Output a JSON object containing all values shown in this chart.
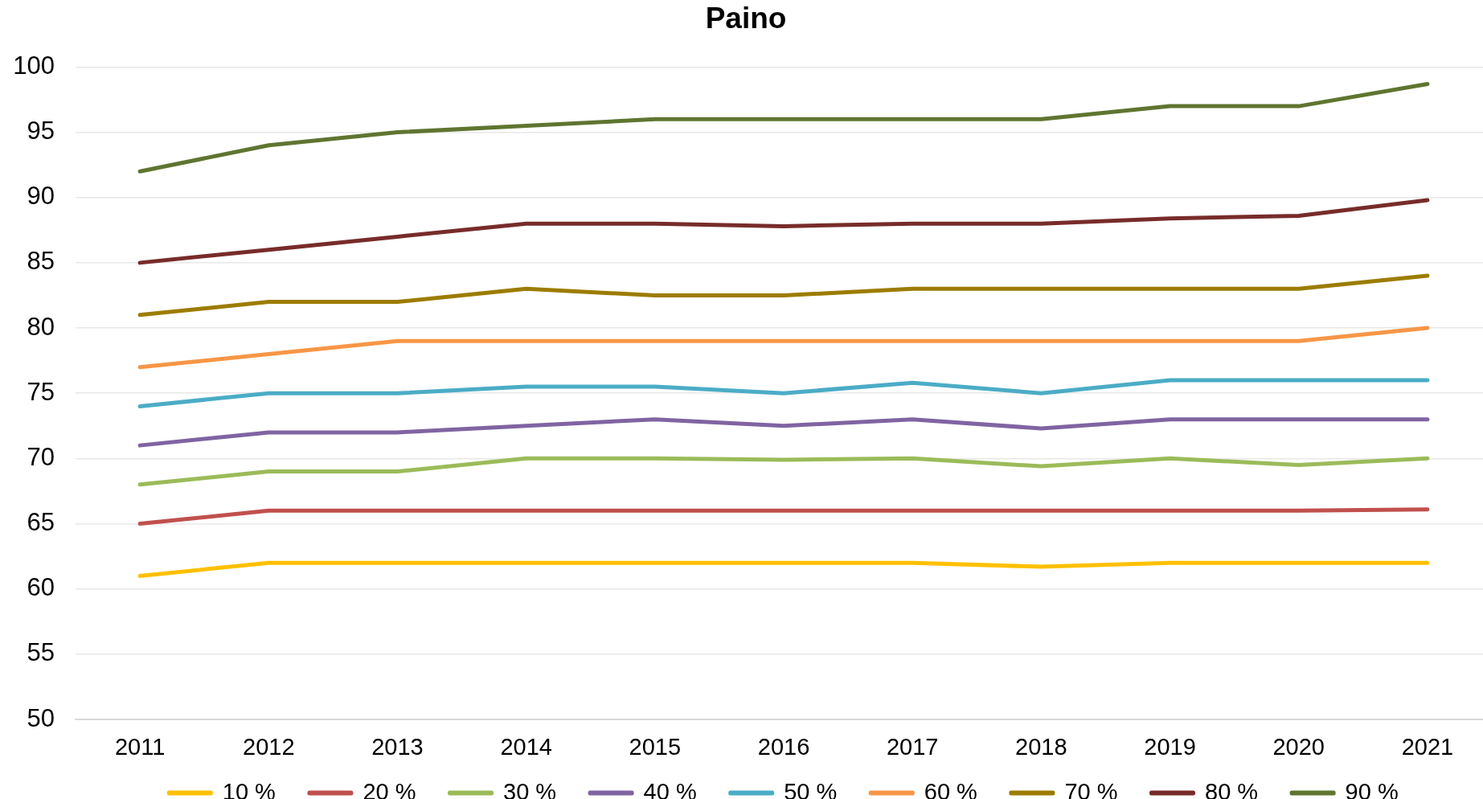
{
  "chart_data": {
    "type": "line",
    "title": "Paino",
    "categories": [
      "2011",
      "2012",
      "2013",
      "2014",
      "2015",
      "2016",
      "2017",
      "2018",
      "2019",
      "2020",
      "2021"
    ],
    "series": [
      {
        "name": "10 %",
        "color": "#ffc000",
        "values": [
          61,
          62,
          62,
          62,
          62,
          62,
          62,
          61.7,
          62,
          62,
          62
        ]
      },
      {
        "name": "20 %",
        "color": "#c0504d",
        "values": [
          65,
          66,
          66,
          66,
          66,
          66,
          66,
          66,
          66,
          66,
          66.1
        ]
      },
      {
        "name": "30 %",
        "color": "#9bbb59",
        "values": [
          68,
          69,
          69,
          70,
          70,
          69.9,
          70,
          69.4,
          70,
          69.5,
          70
        ]
      },
      {
        "name": "40 %",
        "color": "#8064a2",
        "values": [
          71,
          72,
          72,
          72.5,
          73,
          72.5,
          73,
          72.3,
          73,
          73,
          73
        ]
      },
      {
        "name": "50 %",
        "color": "#4bacc6",
        "values": [
          74,
          75,
          75,
          75.5,
          75.5,
          75,
          75.8,
          75,
          76,
          76,
          76
        ]
      },
      {
        "name": "60 %",
        "color": "#f79646",
        "values": [
          77,
          78,
          79,
          79,
          79,
          79,
          79,
          79,
          79,
          79,
          80
        ]
      },
      {
        "name": "70 %",
        "color": "#9c7c00",
        "values": [
          81,
          82,
          82,
          83,
          82.5,
          82.5,
          83,
          83,
          83,
          83,
          84
        ]
      },
      {
        "name": "80 %",
        "color": "#772c2a",
        "values": [
          85,
          86,
          87,
          88,
          88,
          87.8,
          88,
          88,
          88.4,
          88.6,
          89.8
        ]
      },
      {
        "name": "90 %",
        "color": "#5f7530",
        "values": [
          92,
          94,
          95,
          95.5,
          96,
          96,
          96,
          96,
          97,
          97,
          98.7
        ]
      }
    ],
    "ylim": [
      50,
      100
    ],
    "yticks": [
      50,
      55,
      60,
      65,
      70,
      75,
      80,
      85,
      90,
      95,
      100
    ],
    "grid": "y",
    "legend": "bottom"
  }
}
